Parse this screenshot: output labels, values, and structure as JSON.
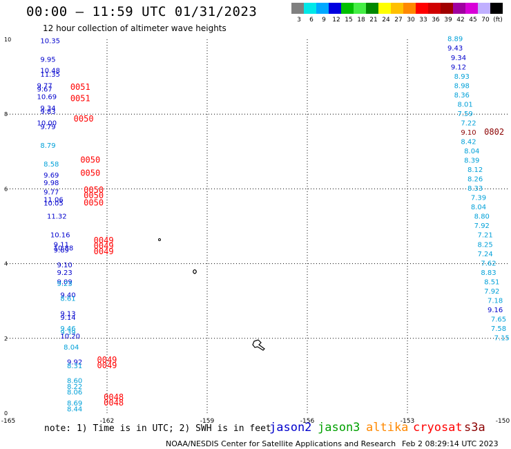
{
  "header": {
    "title": "00:00 — 11:59 UTC 01/31/2023",
    "subtitle": "12 hour collection of altimeter wave heights"
  },
  "legend": {
    "colors": [
      "#808080",
      "#00e8e8",
      "#00a8ff",
      "#0000e0",
      "#00c000",
      "#44ee44",
      "#008800",
      "#ffff00",
      "#ffc000",
      "#ff8800",
      "#ff0000",
      "#d00000",
      "#a00000",
      "#a000a0",
      "#d800d8",
      "#c0b0ff",
      "#000000"
    ],
    "labels": [
      "3",
      "6",
      "9",
      "12",
      "15",
      "18",
      "21",
      "24",
      "27",
      "30",
      "33",
      "36",
      "39",
      "42",
      "45",
      "70",
      "(ft)"
    ]
  },
  "chart_data": {
    "type": "scatter",
    "x_ticks": [
      "-165",
      "-162",
      "-159",
      "-156",
      "-153",
      "-150"
    ],
    "y_ticks": [
      "0",
      "2",
      "4",
      "6",
      "8",
      "10"
    ],
    "xlim": [
      -165,
      -150
    ],
    "ylim": [
      0,
      10
    ],
    "grid": true,
    "series_colors": {
      "dark_blue": "#0000cc",
      "light_blue": "#00a0d8",
      "red": "#ff0000",
      "dark_red": "#8b0000"
    },
    "points": [
      {
        "x": -164.0,
        "y": 9.9,
        "label": "10.35",
        "color": "dark_blue"
      },
      {
        "x": -164.0,
        "y": 9.4,
        "label": "9.95",
        "color": "dark_blue"
      },
      {
        "x": -164.0,
        "y": 9.1,
        "label": "10.48",
        "color": "dark_blue"
      },
      {
        "x": -164.0,
        "y": 9.0,
        "label": "11.35",
        "color": "dark_blue"
      },
      {
        "x": -164.1,
        "y": 8.7,
        "label": "9.77",
        "color": "dark_blue"
      },
      {
        "x": -164.1,
        "y": 8.6,
        "label": "9.67",
        "color": "dark_blue"
      },
      {
        "x": -164.1,
        "y": 8.4,
        "label": "10.69",
        "color": "dark_blue"
      },
      {
        "x": -164.0,
        "y": 8.1,
        "label": "9.34",
        "color": "dark_blue"
      },
      {
        "x": -164.0,
        "y": 8.0,
        "label": "9.83",
        "color": "dark_blue"
      },
      {
        "x": -164.1,
        "y": 7.7,
        "label": "10.00",
        "color": "dark_blue"
      },
      {
        "x": -164.0,
        "y": 7.6,
        "label": "9.79",
        "color": "dark_blue"
      },
      {
        "x": -164.0,
        "y": 7.1,
        "label": "8.79",
        "color": "light_blue"
      },
      {
        "x": -163.9,
        "y": 6.6,
        "label": "8.58",
        "color": "light_blue"
      },
      {
        "x": -163.9,
        "y": 6.3,
        "label": "9.69",
        "color": "dark_blue"
      },
      {
        "x": -163.9,
        "y": 6.1,
        "label": "9.98",
        "color": "dark_blue"
      },
      {
        "x": -163.9,
        "y": 5.85,
        "label": "9.77",
        "color": "dark_blue"
      },
      {
        "x": -163.9,
        "y": 5.65,
        "label": "11.06",
        "color": "dark_blue"
      },
      {
        "x": -163.9,
        "y": 5.55,
        "label": "10.05",
        "color": "dark_blue"
      },
      {
        "x": -163.8,
        "y": 5.2,
        "label": "11.32",
        "color": "dark_blue"
      },
      {
        "x": -163.7,
        "y": 4.7,
        "label": "10.16",
        "color": "dark_blue"
      },
      {
        "x": -163.6,
        "y": 4.45,
        "label": "9.11",
        "color": "dark_blue"
      },
      {
        "x": -163.6,
        "y": 4.35,
        "label": "10.88",
        "color": "dark_blue"
      },
      {
        "x": -163.6,
        "y": 4.3,
        "label": "9.89",
        "color": "dark_blue"
      },
      {
        "x": -163.5,
        "y": 3.9,
        "label": "9.10",
        "color": "dark_blue"
      },
      {
        "x": -163.5,
        "y": 3.7,
        "label": "9.23",
        "color": "dark_blue"
      },
      {
        "x": -163.5,
        "y": 3.45,
        "label": "9.09",
        "color": "dark_blue"
      },
      {
        "x": -163.5,
        "y": 3.4,
        "label": "9.23",
        "color": "light_blue"
      },
      {
        "x": -163.4,
        "y": 3.1,
        "label": "9.40",
        "color": "dark_blue"
      },
      {
        "x": -163.4,
        "y": 3.0,
        "label": "8.61",
        "color": "light_blue"
      },
      {
        "x": -163.4,
        "y": 2.6,
        "label": "9.13",
        "color": "dark_blue"
      },
      {
        "x": -163.4,
        "y": 2.5,
        "label": "9.14",
        "color": "dark_blue"
      },
      {
        "x": -163.4,
        "y": 2.2,
        "label": "9.46",
        "color": "light_blue"
      },
      {
        "x": -163.4,
        "y": 2.1,
        "label": "9.39",
        "color": "light_blue"
      },
      {
        "x": -163.4,
        "y": 2.0,
        "label": "10.20",
        "color": "dark_blue"
      },
      {
        "x": -163.3,
        "y": 1.7,
        "label": "8.04",
        "color": "light_blue"
      },
      {
        "x": -163.2,
        "y": 1.3,
        "label": "9.92",
        "color": "dark_blue"
      },
      {
        "x": -163.2,
        "y": 1.2,
        "label": "8.31",
        "color": "light_blue"
      },
      {
        "x": -163.2,
        "y": 0.8,
        "label": "8.60",
        "color": "light_blue"
      },
      {
        "x": -163.2,
        "y": 0.65,
        "label": "8.22",
        "color": "light_blue"
      },
      {
        "x": -163.2,
        "y": 0.5,
        "label": "8.06",
        "color": "light_blue"
      },
      {
        "x": -163.2,
        "y": 0.2,
        "label": "8.69",
        "color": "light_blue"
      },
      {
        "x": -163.2,
        "y": 0.05,
        "label": "8.44",
        "color": "light_blue"
      },
      {
        "x": -151.8,
        "y": 9.95,
        "label": "8.89",
        "color": "light_blue"
      },
      {
        "x": -151.8,
        "y": 9.7,
        "label": "9.43",
        "color": "dark_blue"
      },
      {
        "x": -151.7,
        "y": 9.45,
        "label": "9.34",
        "color": "dark_blue"
      },
      {
        "x": -151.7,
        "y": 9.2,
        "label": "9.12",
        "color": "dark_blue"
      },
      {
        "x": -151.6,
        "y": 8.95,
        "label": "8.93",
        "color": "light_blue"
      },
      {
        "x": -151.6,
        "y": 8.7,
        "label": "8.98",
        "color": "light_blue"
      },
      {
        "x": -151.6,
        "y": 8.45,
        "label": "8.36",
        "color": "light_blue"
      },
      {
        "x": -151.5,
        "y": 8.2,
        "label": "8.01",
        "color": "light_blue"
      },
      {
        "x": -151.5,
        "y": 7.95,
        "label": "7.59",
        "color": "light_blue"
      },
      {
        "x": -151.4,
        "y": 7.7,
        "label": "7.22",
        "color": "light_blue"
      },
      {
        "x": -151.4,
        "y": 7.45,
        "label": "9.10",
        "color": "dark_red"
      },
      {
        "x": -151.4,
        "y": 7.2,
        "label": "8.42",
        "color": "light_blue"
      },
      {
        "x": -151.3,
        "y": 6.95,
        "label": "8.04",
        "color": "light_blue"
      },
      {
        "x": -151.3,
        "y": 6.7,
        "label": "8.39",
        "color": "light_blue"
      },
      {
        "x": -151.2,
        "y": 6.45,
        "label": "8.12",
        "color": "light_blue"
      },
      {
        "x": -151.2,
        "y": 6.2,
        "label": "8.26",
        "color": "light_blue"
      },
      {
        "x": -151.2,
        "y": 5.95,
        "label": "8.33",
        "color": "light_blue"
      },
      {
        "x": -151.1,
        "y": 5.7,
        "label": "7.39",
        "color": "light_blue"
      },
      {
        "x": -151.1,
        "y": 5.45,
        "label": "8.04",
        "color": "light_blue"
      },
      {
        "x": -151.0,
        "y": 5.2,
        "label": "8.80",
        "color": "light_blue"
      },
      {
        "x": -151.0,
        "y": 4.95,
        "label": "7.92",
        "color": "light_blue"
      },
      {
        "x": -150.9,
        "y": 4.7,
        "label": "7.21",
        "color": "light_blue"
      },
      {
        "x": -150.9,
        "y": 4.45,
        "label": "8.25",
        "color": "light_blue"
      },
      {
        "x": -150.9,
        "y": 4.2,
        "label": "7.24",
        "color": "light_blue"
      },
      {
        "x": -150.8,
        "y": 3.95,
        "label": "7.62",
        "color": "light_blue"
      },
      {
        "x": -150.8,
        "y": 3.7,
        "label": "8.83",
        "color": "light_blue"
      },
      {
        "x": -150.7,
        "y": 3.45,
        "label": "8.51",
        "color": "light_blue"
      },
      {
        "x": -150.7,
        "y": 3.2,
        "label": "7.92",
        "color": "light_blue"
      },
      {
        "x": -150.6,
        "y": 2.95,
        "label": "7.18",
        "color": "light_blue"
      },
      {
        "x": -150.6,
        "y": 2.7,
        "label": "9.16",
        "color": "dark_blue"
      },
      {
        "x": -150.5,
        "y": 2.45,
        "label": "7.65",
        "color": "light_blue"
      },
      {
        "x": -150.5,
        "y": 2.2,
        "label": "7.58",
        "color": "light_blue"
      },
      {
        "x": -150.4,
        "y": 1.95,
        "label": "7.15",
        "color": "light_blue"
      }
    ],
    "time_labels": [
      {
        "x": -163.1,
        "y": 8.65,
        "label": "0051",
        "color": "red"
      },
      {
        "x": -163.1,
        "y": 8.35,
        "label": "0051",
        "color": "red"
      },
      {
        "x": -163.0,
        "y": 7.8,
        "label": "0050",
        "color": "red"
      },
      {
        "x": -162.8,
        "y": 6.7,
        "label": "0050",
        "color": "red"
      },
      {
        "x": -162.8,
        "y": 6.35,
        "label": "0050",
        "color": "red"
      },
      {
        "x": -162.7,
        "y": 5.9,
        "label": "0050",
        "color": "red"
      },
      {
        "x": -162.7,
        "y": 5.75,
        "label": "0050",
        "color": "red"
      },
      {
        "x": -162.7,
        "y": 5.55,
        "label": "0050",
        "color": "red"
      },
      {
        "x": -162.4,
        "y": 4.55,
        "label": "0049",
        "color": "red"
      },
      {
        "x": -162.4,
        "y": 4.4,
        "label": "0049",
        "color": "red"
      },
      {
        "x": -162.4,
        "y": 4.25,
        "label": "0049",
        "color": "red"
      },
      {
        "x": -162.3,
        "y": 1.35,
        "label": "0049",
        "color": "red"
      },
      {
        "x": -162.3,
        "y": 1.2,
        "label": "0049",
        "color": "red"
      },
      {
        "x": -162.1,
        "y": 0.35,
        "label": "0048",
        "color": "red"
      },
      {
        "x": -162.1,
        "y": 0.2,
        "label": "0048",
        "color": "red"
      },
      {
        "x": -150.7,
        "y": 7.45,
        "label": "0802",
        "color": "dark_red"
      }
    ]
  },
  "footer": {
    "note": "note: 1) Time is in UTC; 2) SWH is in feet",
    "satellites": [
      {
        "name": "jason2",
        "color": "#0000cc"
      },
      {
        "name": "jason3",
        "color": "#00a000"
      },
      {
        "name": "altika",
        "color": "#ff8800"
      },
      {
        "name": "cryosat",
        "color": "#ff0000"
      },
      {
        "name": "s3a",
        "color": "#8b0000"
      }
    ],
    "credit": "NOAA/NESDIS Center for Satellite Applications and Research",
    "timestamp": "Feb  2 08:29:14 UTC 2023"
  }
}
